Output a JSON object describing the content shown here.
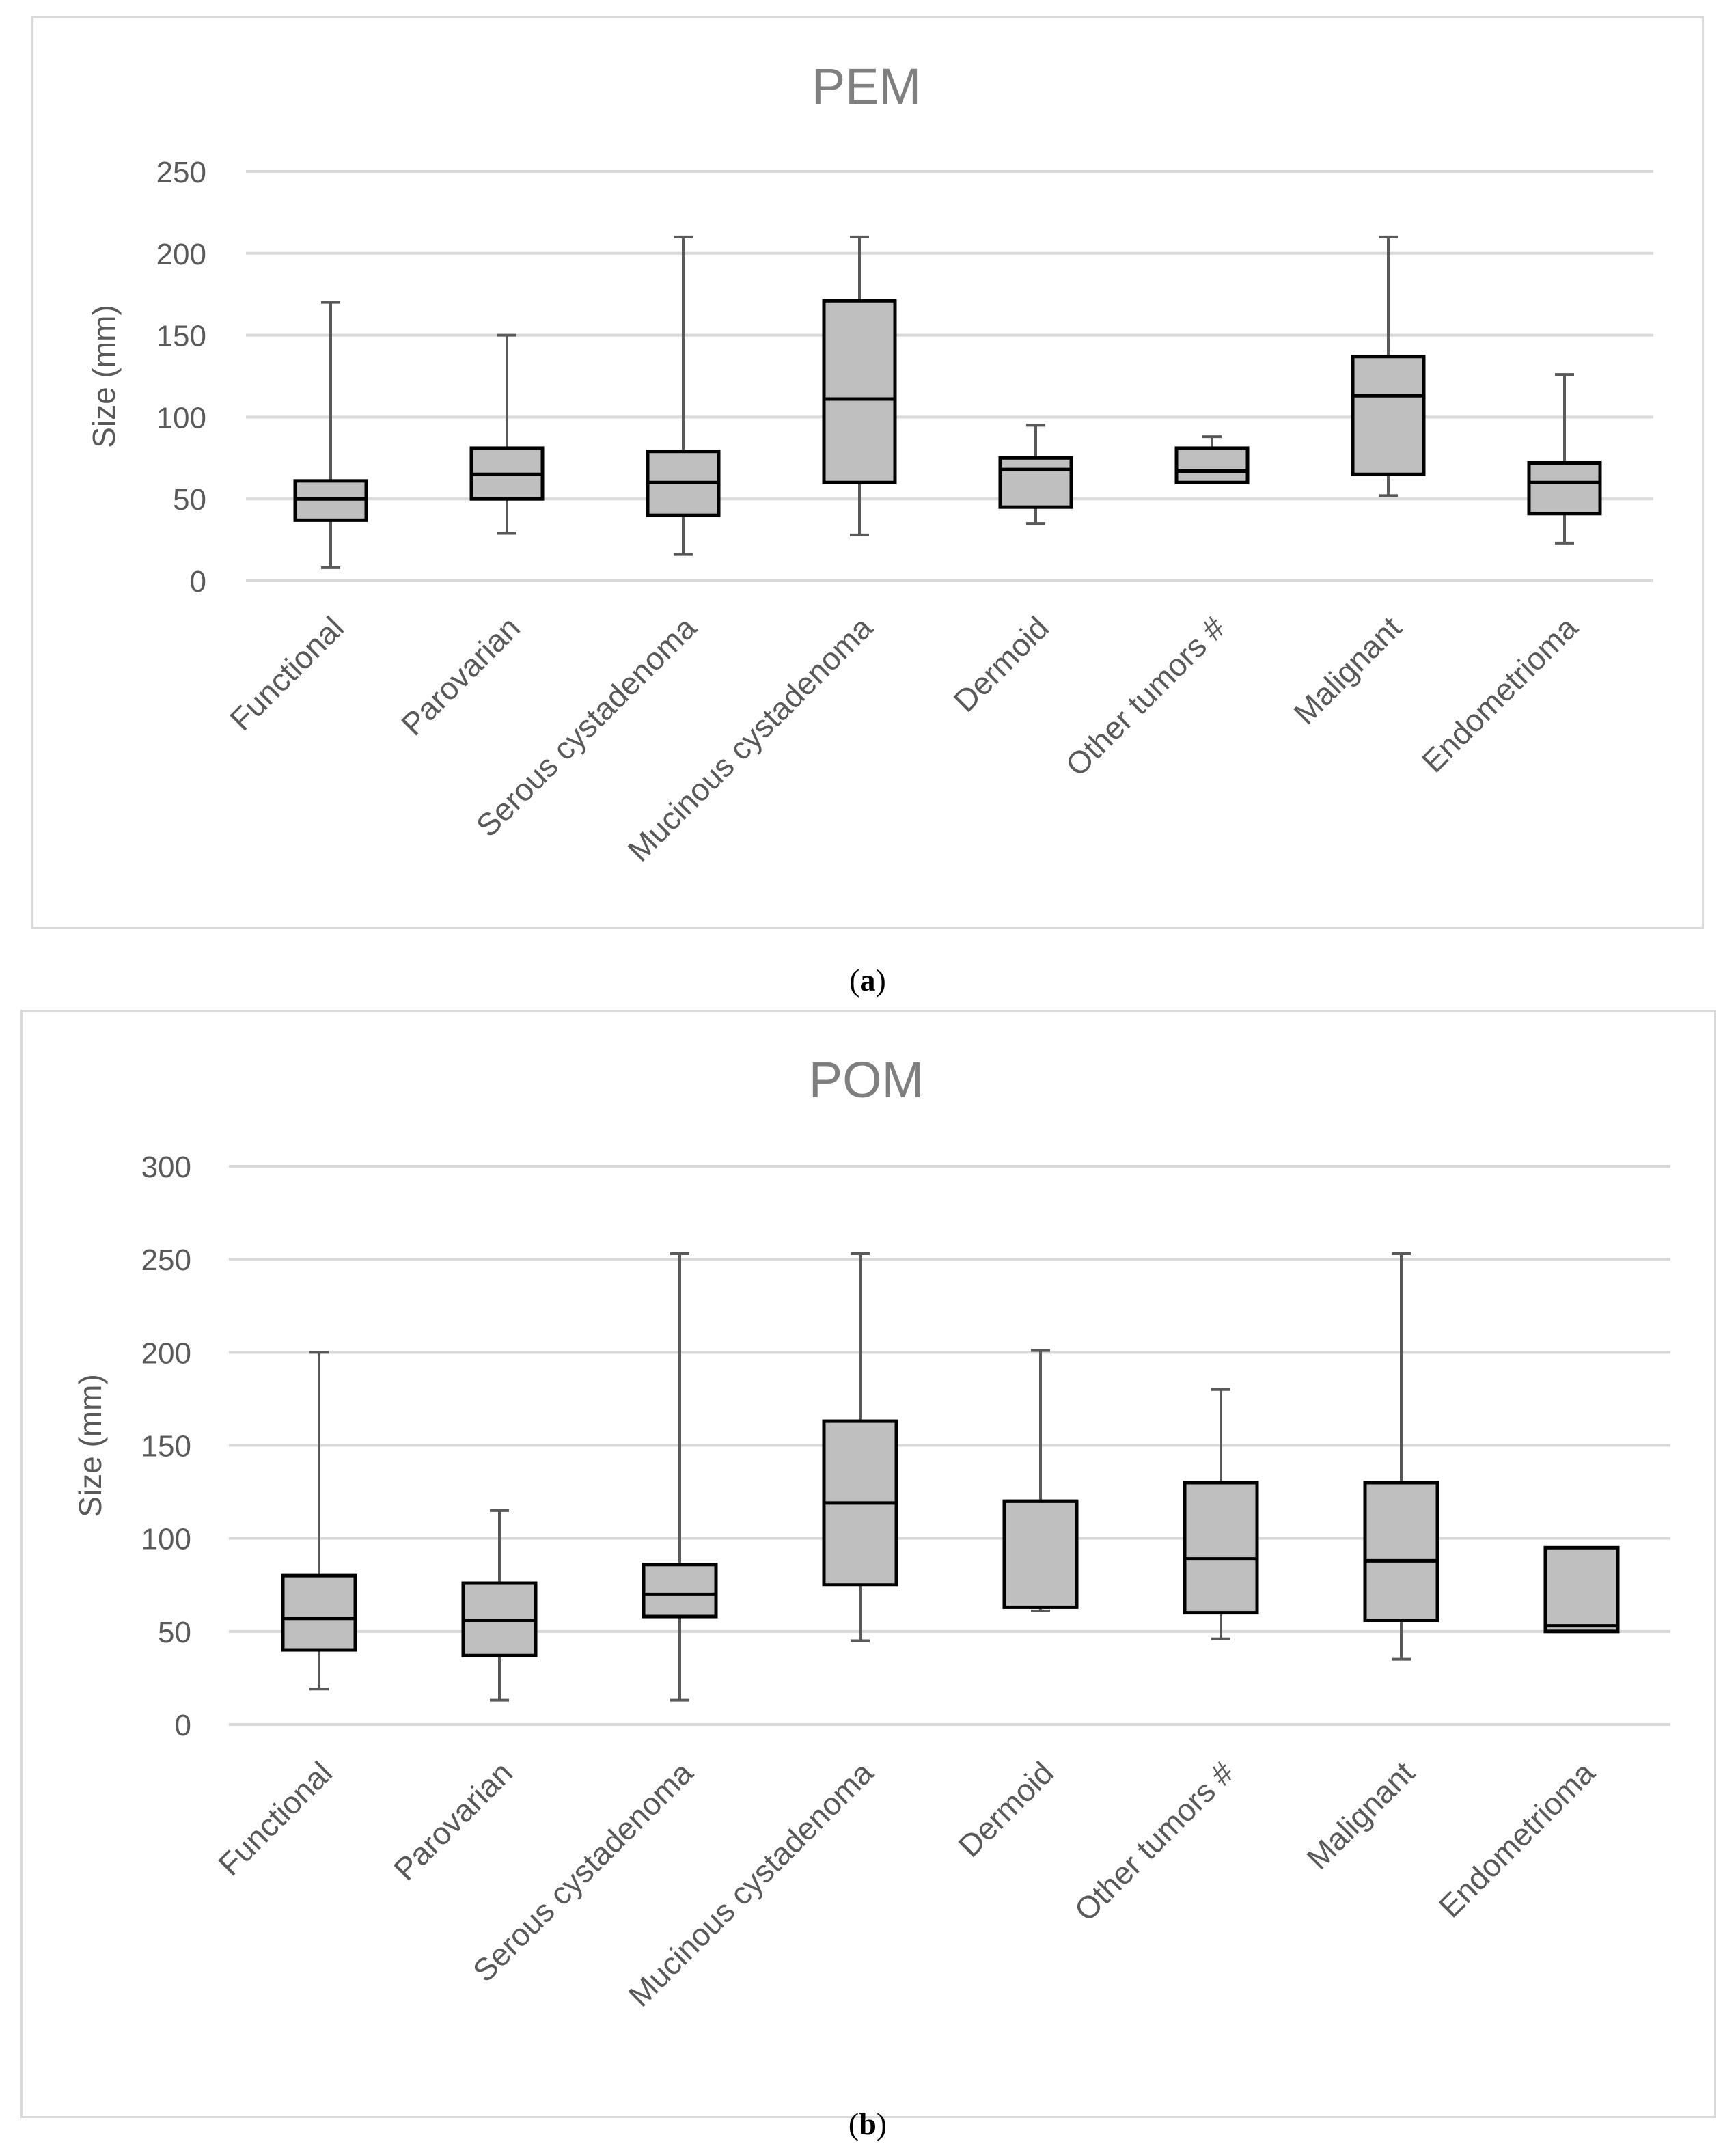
{
  "colors": {
    "frame": "#d9d9d9",
    "grid": "#d9d9d9",
    "box_fill": "#bfbfbf",
    "box_stroke": "#000000",
    "whisker": "#595959",
    "text": "#595959",
    "title": "#7f7f7f"
  },
  "panels": [
    {
      "caption_open": "(",
      "caption_letter": "a",
      "caption_close": ")"
    },
    {
      "caption_open": "(",
      "caption_letter": "b",
      "caption_close": ")"
    }
  ],
  "chart_data": [
    {
      "type": "box",
      "title": "PEM",
      "ylabel": "Size (mm)",
      "xlabel": "",
      "ylim": [
        0,
        250
      ],
      "yticks": [
        0,
        50,
        100,
        150,
        200,
        250
      ],
      "grid": true,
      "categories": [
        "Functional",
        "Parovarian",
        "Serous cystadenoma",
        "Mucinous cystadenoma",
        "Dermoid",
        "Other tumors #",
        "Malignant",
        "Endometrioma"
      ],
      "min": [
        8,
        29,
        16,
        28,
        35,
        60,
        52,
        23
      ],
      "q1": [
        37,
        50,
        40,
        60,
        45,
        60,
        65,
        41
      ],
      "median": [
        50,
        65,
        60,
        111,
        68,
        67,
        113,
        60
      ],
      "q3": [
        61,
        81,
        79,
        171,
        75,
        81,
        137,
        72
      ],
      "max": [
        170,
        150,
        210,
        210,
        95,
        88,
        210,
        126
      ]
    },
    {
      "type": "box",
      "title": "POM",
      "ylabel": "Size (mm)",
      "xlabel": "",
      "ylim": [
        0,
        300
      ],
      "yticks": [
        0,
        50,
        100,
        150,
        200,
        250,
        300
      ],
      "grid": true,
      "categories": [
        "Functional",
        "Parovarian",
        "Serous cystadenoma",
        "Mucinous cystadenoma",
        "Dermoid",
        "Other tumors #",
        "Malignant",
        "Endometrioma"
      ],
      "min": [
        19,
        13,
        13,
        45,
        61,
        46,
        35,
        50
      ],
      "q1": [
        40,
        37,
        58,
        75,
        63,
        60,
        56,
        50
      ],
      "median": [
        57,
        56,
        70,
        119,
        120,
        89,
        88,
        53
      ],
      "q3": [
        80,
        76,
        86,
        163,
        120,
        130,
        130,
        95
      ],
      "max": [
        200,
        115,
        253,
        253,
        201,
        180,
        253,
        95
      ]
    }
  ]
}
